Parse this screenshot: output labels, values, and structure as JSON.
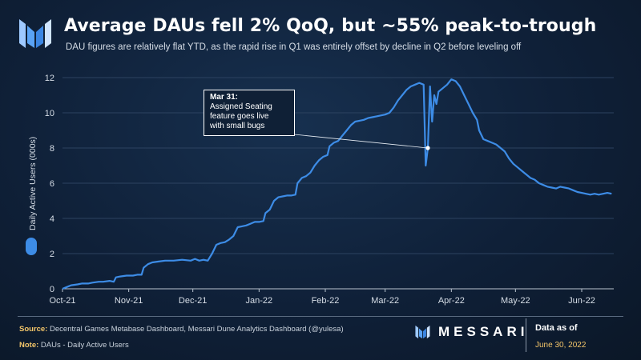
{
  "header": {
    "title": "Average DAUs fell 2% QoQ, but ~55% peak-to-trough",
    "subtitle": "DAU figures are relatively flat YTD, as the rapid rise in Q1 was entirely offset by decline in Q2 before leveling off"
  },
  "annotation": {
    "heading": "Mar 31:",
    "line1": "Assigned Seating",
    "line2": "feature goes live",
    "line3": "with small bugs",
    "point_x": "2022-03-31",
    "point_y": 8.0
  },
  "footer": {
    "source_label": "Source:",
    "source_text": "Decentral Games Metabase Dashboard, Messari Dune Analytics Dashboard (@yulesa)",
    "note_label": "Note:",
    "note_text": "DAUs - Daily Active Users",
    "brand": "MESSARI",
    "asof_label": "Data as of",
    "asof_date": "June 30, 2022"
  },
  "colors": {
    "line": "#3d8ce6",
    "accent": "#f4c66a",
    "background": "#0d1b2e"
  },
  "chart_data": {
    "type": "line",
    "title": "Average DAUs fell 2% QoQ, but ~55% peak-to-trough",
    "xlabel": "",
    "ylabel": "Daily Active Users (000s)",
    "ylim": [
      0,
      12
    ],
    "yticks": [
      0,
      2,
      4,
      6,
      8,
      10,
      12
    ],
    "xticks": [
      {
        "label": "Oct-21",
        "t": 0
      },
      {
        "label": "Nov-21",
        "t": 31
      },
      {
        "label": "Dec-21",
        "t": 61
      },
      {
        "label": "Jan-22",
        "t": 92
      },
      {
        "label": "Feb-22",
        "t": 123
      },
      {
        "label": "Mar-22",
        "t": 151
      },
      {
        "label": "Apr-22",
        "t": 182
      },
      {
        "label": "May-22",
        "t": 212
      },
      {
        "label": "Jun-22",
        "t": 243
      }
    ],
    "x_range_days": [
      0,
      258
    ],
    "series": [
      {
        "name": "DAUs",
        "points": [
          [
            0,
            0.0
          ],
          [
            2,
            0.1
          ],
          [
            4,
            0.2
          ],
          [
            7,
            0.25
          ],
          [
            9,
            0.3
          ],
          [
            12,
            0.3
          ],
          [
            14,
            0.35
          ],
          [
            17,
            0.4
          ],
          [
            19,
            0.4
          ],
          [
            22,
            0.45
          ],
          [
            24,
            0.4
          ],
          [
            25,
            0.65
          ],
          [
            27,
            0.7
          ],
          [
            30,
            0.75
          ],
          [
            33,
            0.75
          ],
          [
            35,
            0.8
          ],
          [
            37,
            0.8
          ],
          [
            38,
            1.2
          ],
          [
            40,
            1.4
          ],
          [
            42,
            1.5
          ],
          [
            45,
            1.55
          ],
          [
            48,
            1.6
          ],
          [
            52,
            1.6
          ],
          [
            56,
            1.65
          ],
          [
            60,
            1.6
          ],
          [
            62,
            1.7
          ],
          [
            64,
            1.6
          ],
          [
            66,
            1.65
          ],
          [
            68,
            1.6
          ],
          [
            70,
            2.0
          ],
          [
            72,
            2.5
          ],
          [
            74,
            2.6
          ],
          [
            76,
            2.65
          ],
          [
            78,
            2.8
          ],
          [
            80,
            3.0
          ],
          [
            82,
            3.5
          ],
          [
            84,
            3.55
          ],
          [
            86,
            3.6
          ],
          [
            88,
            3.7
          ],
          [
            90,
            3.8
          ],
          [
            92,
            3.8
          ],
          [
            94,
            3.85
          ],
          [
            95,
            4.3
          ],
          [
            97,
            4.5
          ],
          [
            99,
            5.0
          ],
          [
            101,
            5.2
          ],
          [
            103,
            5.25
          ],
          [
            105,
            5.3
          ],
          [
            107,
            5.3
          ],
          [
            109,
            5.35
          ],
          [
            110,
            6.0
          ],
          [
            112,
            6.3
          ],
          [
            114,
            6.4
          ],
          [
            116,
            6.6
          ],
          [
            118,
            7.0
          ],
          [
            120,
            7.3
          ],
          [
            122,
            7.5
          ],
          [
            124,
            7.6
          ],
          [
            125,
            8.1
          ],
          [
            127,
            8.3
          ],
          [
            129,
            8.4
          ],
          [
            131,
            8.7
          ],
          [
            133,
            9.0
          ],
          [
            135,
            9.3
          ],
          [
            137,
            9.5
          ],
          [
            139,
            9.55
          ],
          [
            141,
            9.6
          ],
          [
            143,
            9.7
          ],
          [
            145,
            9.75
          ],
          [
            147,
            9.8
          ],
          [
            149,
            9.85
          ],
          [
            151,
            9.9
          ],
          [
            153,
            10.0
          ],
          [
            155,
            10.3
          ],
          [
            157,
            10.7
          ],
          [
            159,
            11.0
          ],
          [
            161,
            11.3
          ],
          [
            163,
            11.5
          ],
          [
            165,
            11.6
          ],
          [
            167,
            11.7
          ],
          [
            169,
            11.6
          ],
          [
            170,
            7.0
          ],
          [
            171,
            8.0
          ],
          [
            172,
            11.5
          ],
          [
            173,
            9.5
          ],
          [
            174,
            11.0
          ],
          [
            175,
            10.5
          ],
          [
            176,
            11.2
          ],
          [
            178,
            11.4
          ],
          [
            180,
            11.6
          ],
          [
            182,
            11.9
          ],
          [
            184,
            11.8
          ],
          [
            186,
            11.5
          ],
          [
            188,
            11.0
          ],
          [
            190,
            10.5
          ],
          [
            192,
            10.0
          ],
          [
            194,
            9.6
          ],
          [
            195,
            9.0
          ],
          [
            197,
            8.5
          ],
          [
            199,
            8.4
          ],
          [
            201,
            8.3
          ],
          [
            203,
            8.2
          ],
          [
            205,
            8.0
          ],
          [
            207,
            7.8
          ],
          [
            209,
            7.4
          ],
          [
            211,
            7.1
          ],
          [
            213,
            6.9
          ],
          [
            215,
            6.7
          ],
          [
            217,
            6.5
          ],
          [
            219,
            6.3
          ],
          [
            221,
            6.2
          ],
          [
            223,
            6.0
          ],
          [
            225,
            5.9
          ],
          [
            227,
            5.8
          ],
          [
            229,
            5.75
          ],
          [
            231,
            5.7
          ],
          [
            233,
            5.8
          ],
          [
            235,
            5.75
          ],
          [
            237,
            5.7
          ],
          [
            239,
            5.6
          ],
          [
            241,
            5.5
          ],
          [
            243,
            5.45
          ],
          [
            245,
            5.4
          ],
          [
            247,
            5.35
          ],
          [
            249,
            5.4
          ],
          [
            251,
            5.35
          ],
          [
            253,
            5.4
          ],
          [
            255,
            5.45
          ],
          [
            257,
            5.4
          ]
        ]
      }
    ]
  }
}
